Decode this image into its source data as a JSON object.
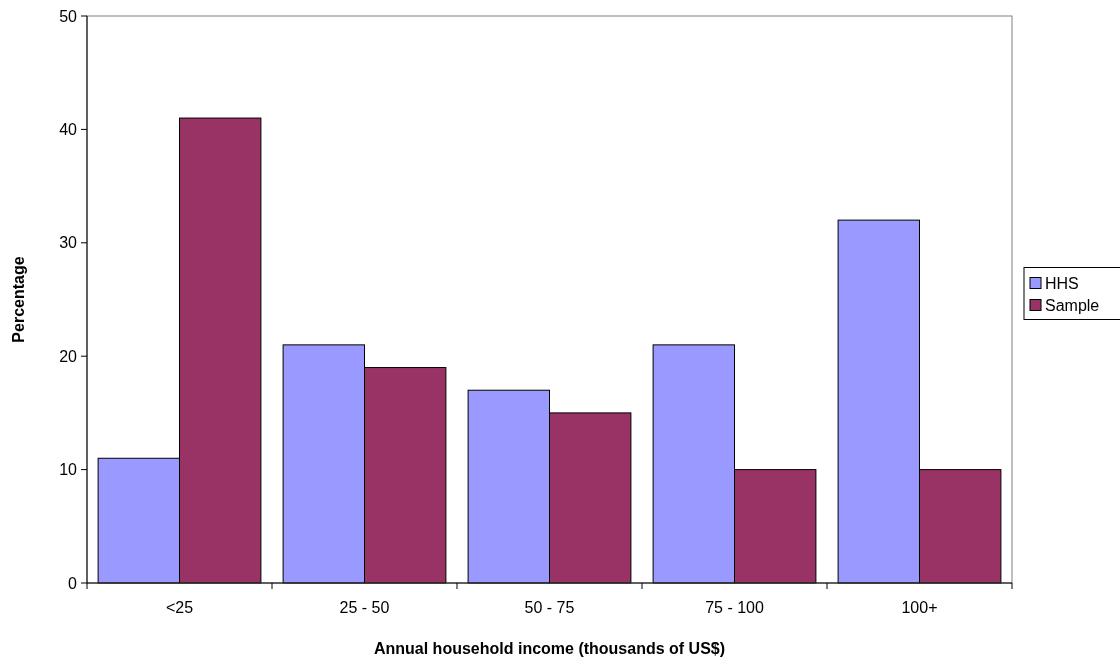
{
  "chart_data": {
    "type": "bar",
    "xlabel": "Annual household income (thousands of US$)",
    "ylabel": "Percentage",
    "categories": [
      "<25",
      "25 - 50",
      "50 - 75",
      "75 - 100",
      "100+"
    ],
    "series": [
      {
        "name": "HHS",
        "color": "#9999ff",
        "values": [
          11,
          21,
          17,
          21,
          32
        ]
      },
      {
        "name": "Sample",
        "color": "#993366",
        "values": [
          41,
          19,
          15,
          10,
          10
        ]
      }
    ],
    "ylim": [
      0,
      50
    ],
    "yticks": [
      0,
      10,
      20,
      30,
      40,
      50
    ],
    "legend": "right"
  }
}
